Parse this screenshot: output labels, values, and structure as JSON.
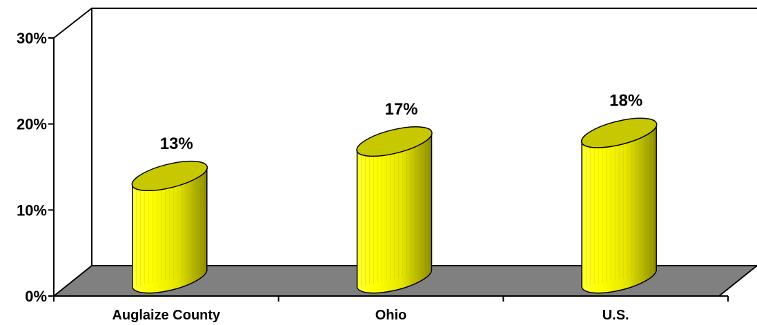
{
  "chart_data": {
    "type": "bar",
    "style": "3d-cylinder",
    "categories": [
      "Auglaize County",
      "Ohio",
      "U.S."
    ],
    "values": [
      13,
      17,
      18
    ],
    "data_labels": [
      "13%",
      "17%",
      "18%"
    ],
    "y_ticks": [
      "0%",
      "10%",
      "20%",
      "30%"
    ],
    "y_tick_values": [
      0,
      10,
      20,
      30
    ],
    "ylim": [
      0,
      30
    ],
    "grid": false,
    "legend": "none",
    "colors": {
      "bar_light": "#ffff00",
      "bar_mid": "#e6e600",
      "bar_dark": "#999900",
      "bar_top": "#c8c800",
      "floor": "#808080",
      "outline": "#000000"
    }
  }
}
